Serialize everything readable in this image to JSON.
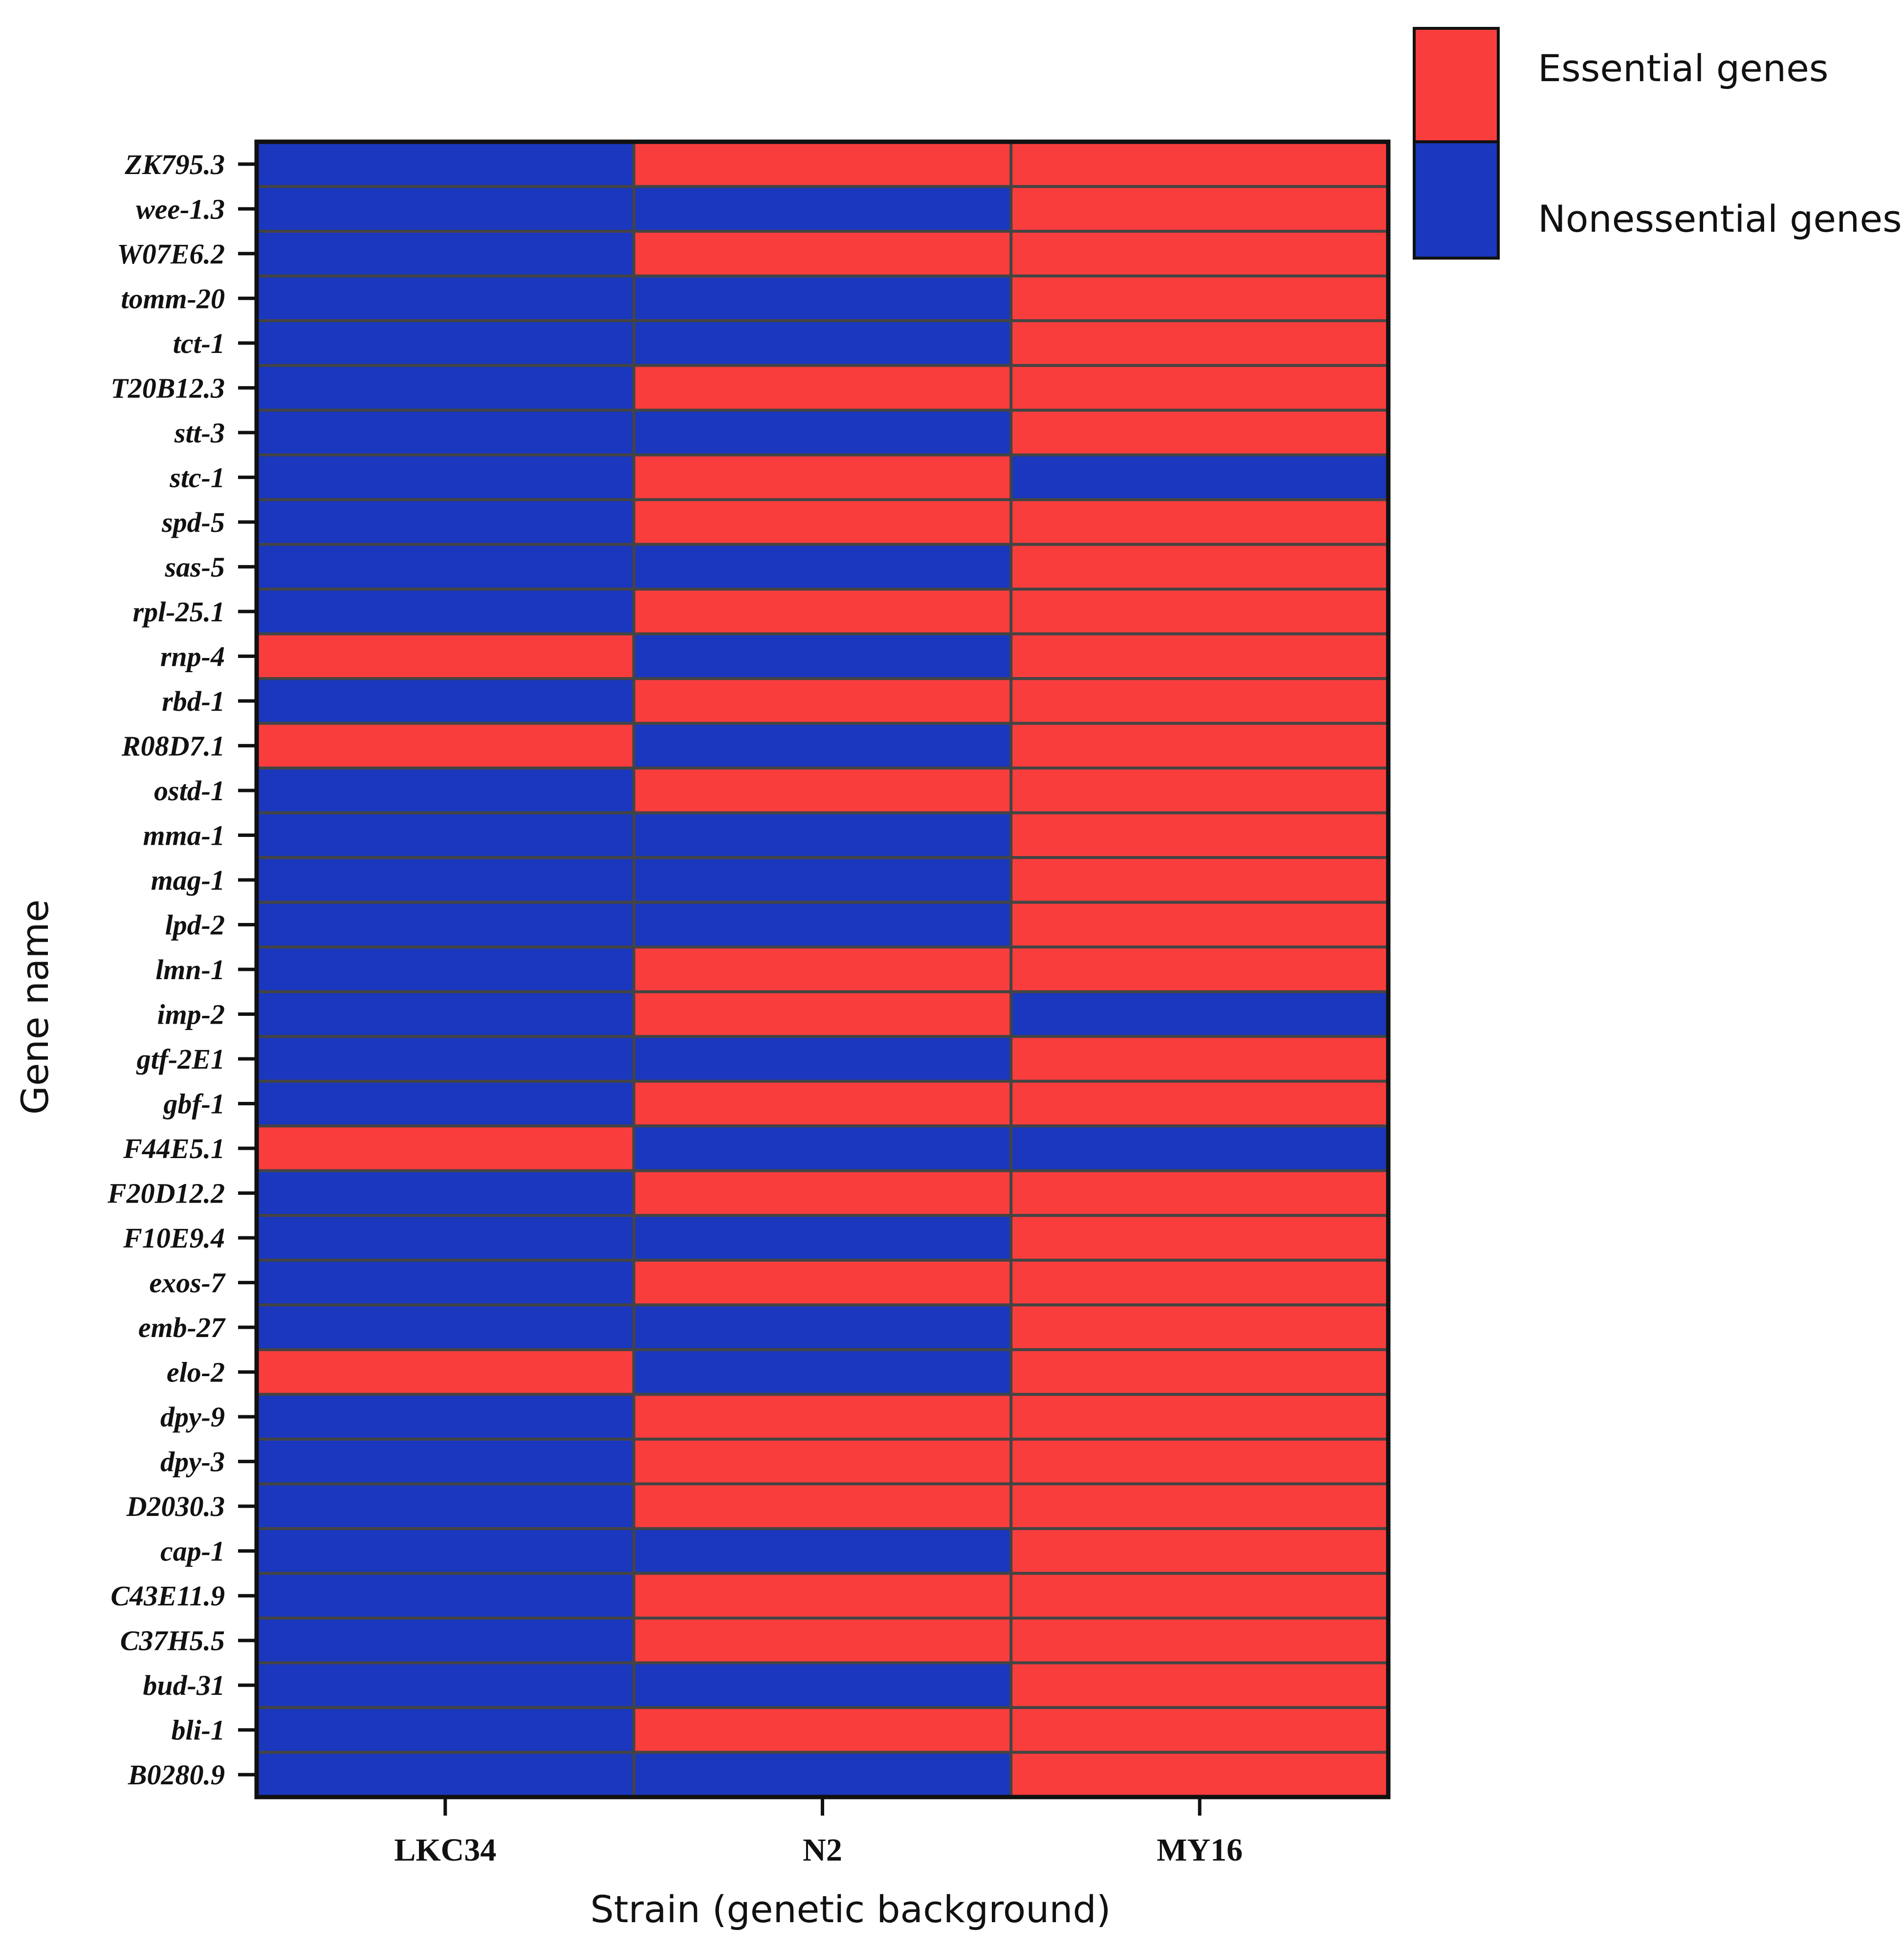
{
  "chart_data": {
    "type": "heatmap",
    "title": "",
    "xlabel": "Strain (genetic background)",
    "ylabel": "Gene name",
    "x": [
      "LKC34",
      "N2",
      "MY16"
    ],
    "y": [
      "ZK795.3",
      "wee-1.3",
      "W07E6.2",
      "tomm-20",
      "tct-1",
      "T20B12.3",
      "stt-3",
      "stc-1",
      "spd-5",
      "sas-5",
      "rpl-25.1",
      "rnp-4",
      "rbd-1",
      "R08D7.1",
      "ostd-1",
      "mma-1",
      "mag-1",
      "lpd-2",
      "lmn-1",
      "imp-2",
      "gtf-2E1",
      "gbf-1",
      "F44E5.1",
      "F20D12.2",
      "F10E9.4",
      "exos-7",
      "emb-27",
      "elo-2",
      "dpy-9",
      "dpy-3",
      "D2030.3",
      "cap-1",
      "C43E11.9",
      "C37H5.5",
      "bud-31",
      "bli-1",
      "B0280.9"
    ],
    "values": [
      [
        0,
        1,
        1
      ],
      [
        0,
        0,
        1
      ],
      [
        0,
        1,
        1
      ],
      [
        0,
        0,
        1
      ],
      [
        0,
        0,
        1
      ],
      [
        0,
        1,
        1
      ],
      [
        0,
        0,
        1
      ],
      [
        0,
        1,
        0
      ],
      [
        0,
        1,
        1
      ],
      [
        0,
        0,
        1
      ],
      [
        0,
        1,
        1
      ],
      [
        1,
        0,
        1
      ],
      [
        0,
        1,
        1
      ],
      [
        1,
        0,
        1
      ],
      [
        0,
        1,
        1
      ],
      [
        0,
        0,
        1
      ],
      [
        0,
        0,
        1
      ],
      [
        0,
        0,
        1
      ],
      [
        0,
        1,
        1
      ],
      [
        0,
        1,
        0
      ],
      [
        0,
        0,
        1
      ],
      [
        0,
        1,
        1
      ],
      [
        1,
        0,
        0
      ],
      [
        0,
        1,
        1
      ],
      [
        0,
        0,
        1
      ],
      [
        0,
        1,
        1
      ],
      [
        0,
        0,
        1
      ],
      [
        1,
        0,
        1
      ],
      [
        0,
        1,
        1
      ],
      [
        0,
        1,
        1
      ],
      [
        0,
        1,
        1
      ],
      [
        0,
        0,
        1
      ],
      [
        0,
        1,
        1
      ],
      [
        0,
        1,
        1
      ],
      [
        0,
        0,
        1
      ],
      [
        0,
        1,
        1
      ],
      [
        0,
        0,
        1
      ]
    ],
    "value_meaning": {
      "1": "Essential genes",
      "0": "Nonessential genes"
    },
    "legend": [
      {
        "label": "Essential genes",
        "color": "#f93d3d"
      },
      {
        "label": "Nonessential genes",
        "color": "#1b37bd"
      }
    ],
    "legend_position": "top-right",
    "grid": false
  }
}
